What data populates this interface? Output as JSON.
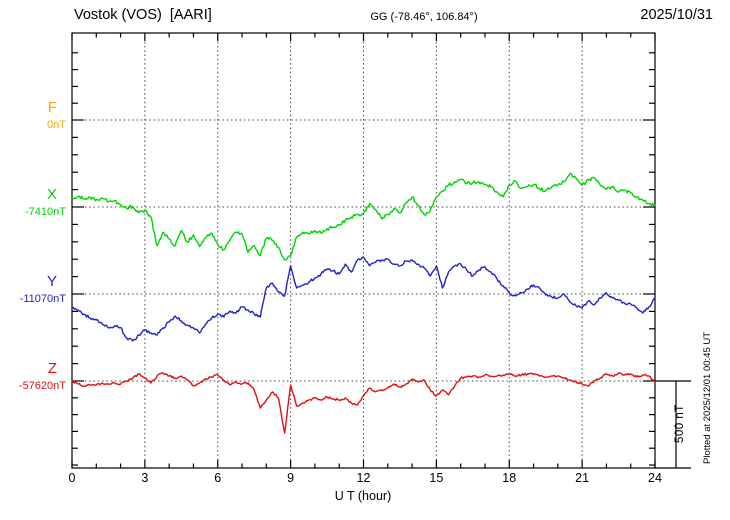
{
  "header": {
    "station_title": "Vostok (VOS)  [AARI]",
    "coords": "GG (-78.46°, 106.84°)",
    "date": "2025/10/31"
  },
  "axes": {
    "x_label": "U T (hour)",
    "x_ticks": [
      "0",
      "3",
      "6",
      "9",
      "12",
      "15",
      "18",
      "21",
      "24"
    ],
    "x_minor_tick_hours": 1,
    "x_range_hours": [
      0,
      24
    ]
  },
  "scale_bar": {
    "label": "500 nT",
    "span_nT": 500
  },
  "plotted_at": "Plotted at 2025/12/01 00:45 UT",
  "components": [
    {
      "id": "F",
      "label": "F",
      "baseline_label": "0nT",
      "color": "#FFA500"
    },
    {
      "id": "X",
      "label": "X",
      "baseline_label": "-7410nT",
      "color": "#00D400"
    },
    {
      "id": "Y",
      "label": "Y",
      "baseline_label": "-11070nT",
      "color": "#2222CC"
    },
    {
      "id": "Z",
      "label": "Z",
      "baseline_label": "-57620nT",
      "color": "#E01010"
    }
  ],
  "chart_data": {
    "type": "line",
    "title": "Vostok (VOS) [AARI] magnetogram, 2025/10/31",
    "xlabel": "U T (hour)",
    "x_start_hour": 0,
    "x_step_hours": 0.25,
    "x_range": [
      0,
      24
    ],
    "grid": "dotted vertical every 3 h, dotted horizontal at each component baseline",
    "scale_note": "right-hand bracket spans 500 nT",
    "series": [
      {
        "name": "F",
        "baseline_nT": 0,
        "color": "#FFA500",
        "noise_nT": 0,
        "offsets_nT": []
      },
      {
        "name": "X",
        "baseline_nT": -7410,
        "color": "#00D400",
        "noise_nT": 10,
        "offsets_nT": [
          55,
          62,
          48,
          58,
          45,
          52,
          30,
          38,
          15,
          -10,
          5,
          -35,
          -20,
          -60,
          -230,
          -150,
          -190,
          -230,
          -140,
          -210,
          -165,
          -235,
          -185,
          -155,
          -225,
          -255,
          -200,
          -150,
          -160,
          -270,
          -230,
          -290,
          -185,
          -200,
          -240,
          -315,
          -290,
          -180,
          -150,
          -160,
          -140,
          -155,
          -130,
          -120,
          -110,
          -80,
          -60,
          -45,
          -40,
          20,
          -15,
          -70,
          -45,
          -10,
          -35,
          25,
          60,
          10,
          -45,
          -20,
          60,
          95,
          130,
          150,
          165,
          140,
          145,
          150,
          135,
          120,
          90,
          60,
          130,
          155,
          110,
          120,
          135,
          110,
          95,
          120,
          130,
          150,
          200,
          170,
          130,
          160,
          175,
          130,
          105,
          120,
          90,
          100,
          85,
          60,
          40,
          20,
          10
        ]
      },
      {
        "name": "Y",
        "baseline_nT": -11070,
        "color": "#2222CC",
        "noise_nT": 8,
        "offsets_nT": [
          -85,
          -95,
          -120,
          -143,
          -155,
          -178,
          -202,
          -190,
          -200,
          -262,
          -280,
          -244,
          -214,
          -232,
          -244,
          -202,
          -167,
          -131,
          -160,
          -185,
          -202,
          -232,
          -178,
          -143,
          -119,
          -137,
          -101,
          -113,
          -77,
          -95,
          -119,
          -137,
          36,
          65,
          12,
          -12,
          167,
          36,
          54,
          71,
          95,
          119,
          149,
          137,
          119,
          178,
          131,
          202,
          220,
          167,
          190,
          202,
          208,
          178,
          167,
          196,
          202,
          178,
          155,
          107,
          167,
          36,
          131,
          167,
          178,
          143,
          107,
          143,
          161,
          131,
          89,
          48,
          6,
          -12,
          6,
          30,
          54,
          36,
          -6,
          -18,
          -24,
          0,
          -48,
          -71,
          -83,
          -42,
          -65,
          -24,
          6,
          -24,
          -36,
          -54,
          -60,
          -83,
          -113,
          -77,
          -24
        ]
      },
      {
        "name": "Z",
        "baseline_nT": -57620,
        "color": "#E01010",
        "noise_nT": 6,
        "offsets_nT": [
          0,
          -18,
          -30,
          -24,
          -24,
          -12,
          -18,
          -12,
          -18,
          0,
          18,
          42,
          18,
          -12,
          30,
          48,
          30,
          18,
          30,
          6,
          -30,
          -12,
          12,
          24,
          36,
          6,
          -24,
          -6,
          -18,
          -12,
          -54,
          -161,
          -113,
          -65,
          -101,
          -310,
          -24,
          -149,
          -131,
          -113,
          -101,
          -113,
          -95,
          -107,
          -113,
          -101,
          -131,
          -143,
          -89,
          -42,
          -65,
          -54,
          -42,
          -18,
          -36,
          -18,
          12,
          -6,
          6,
          -54,
          -89,
          -54,
          -83,
          -30,
          18,
          24,
          30,
          24,
          36,
          30,
          30,
          36,
          42,
          30,
          36,
          42,
          42,
          30,
          24,
          30,
          30,
          18,
          6,
          -6,
          -18,
          -30,
          0,
          18,
          42,
          30,
          48,
          36,
          42,
          24,
          36,
          30,
          -6
        ]
      }
    ]
  }
}
